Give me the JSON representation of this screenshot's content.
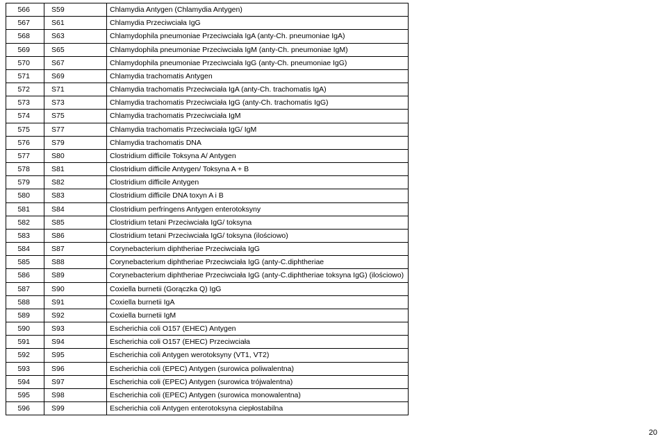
{
  "page_number": "20",
  "table": {
    "rows": [
      {
        "n": "566",
        "code": "S59",
        "desc": "Chlamydia Antygen (Chlamydia Antygen)"
      },
      {
        "n": "567",
        "code": "S61",
        "desc": "Chlamydia Przeciwciała IgG"
      },
      {
        "n": "568",
        "code": "S63",
        "desc": "Chlamydophila pneumoniae Przeciwciała IgA (anty-Ch. pneumoniae IgA)"
      },
      {
        "n": "569",
        "code": "S65",
        "desc": "Chlamydophila pneumoniae Przeciwciała IgM (anty-Ch. pneumoniae IgM)"
      },
      {
        "n": "570",
        "code": "S67",
        "desc": "Chlamydophila pneumoniae Przeciwciała IgG (anty-Ch. pneumoniae IgG)"
      },
      {
        "n": "571",
        "code": "S69",
        "desc": "Chlamydia trachomatis Antygen"
      },
      {
        "n": "572",
        "code": "S71",
        "desc": "Chlamydia trachomatis Przeciwciała IgA (anty-Ch. trachomatis IgA)"
      },
      {
        "n": "573",
        "code": "S73",
        "desc": "Chlamydia trachomatis Przeciwciała IgG (anty-Ch. trachomatis IgG)"
      },
      {
        "n": "574",
        "code": "S75",
        "desc": "Chlamydia trachomatis Przeciwciała IgM"
      },
      {
        "n": "575",
        "code": "S77",
        "desc": "Chlamydia trachomatis Przeciwciała IgG/ IgM"
      },
      {
        "n": "576",
        "code": "S79",
        "desc": "Chlamydia trachomatis DNA"
      },
      {
        "n": "577",
        "code": "S80",
        "desc": "Clostridium difficile Toksyna A/ Antygen"
      },
      {
        "n": "578",
        "code": "S81",
        "desc": "Clostridium difficile Antygen/ Toksyna A + B"
      },
      {
        "n": "579",
        "code": "S82",
        "desc": "Clostridium difficile Antygen"
      },
      {
        "n": "580",
        "code": "S83",
        "desc": "Clostridium difficile DNA toxyn A i B"
      },
      {
        "n": "581",
        "code": "S84",
        "desc": "Clostridium perfringens Antygen enterotoksyny"
      },
      {
        "n": "582",
        "code": "S85",
        "desc": "Clostridium tetani Przeciwciała IgG/ toksyna"
      },
      {
        "n": "583",
        "code": "S86",
        "desc": "Clostridium tetani Przeciwciała IgG/ toksyna (ilościowo)"
      },
      {
        "n": "584",
        "code": "S87",
        "desc": "Corynebacterium diphtheriae Przeciwciała IgG"
      },
      {
        "n": "585",
        "code": "S88",
        "desc": "Corynebacterium diphtheriae Przeciwciała IgG (anty-C.diphtheriae"
      },
      {
        "n": "586",
        "code": "S89",
        "desc": "Corynebacterium diphtheriae Przeciwciała IgG (anty-C.diphtheriae toksyna IgG) (ilościowo)"
      },
      {
        "n": "587",
        "code": "S90",
        "desc": "Coxiella burnetii (Gorączka Q) IgG"
      },
      {
        "n": "588",
        "code": "S91",
        "desc": "Coxiella burnetii IgA"
      },
      {
        "n": "589",
        "code": "S92",
        "desc": "Coxiella burnetii IgM"
      },
      {
        "n": "590",
        "code": "S93",
        "desc": "Escherichia coli O157 (EHEC) Antygen"
      },
      {
        "n": "591",
        "code": "S94",
        "desc": "Escherichia coli O157 (EHEC) Przeciwciała"
      },
      {
        "n": "592",
        "code": "S95",
        "desc": "Escherichia coli Antygen werotoksyny (VT1, VT2)"
      },
      {
        "n": "593",
        "code": "S96",
        "desc": "Escherichia coli (EPEC) Antygen (surowica poliwalentna)"
      },
      {
        "n": "594",
        "code": "S97",
        "desc": "Escherichia coli (EPEC) Antygen (surowica trójwalentna)"
      },
      {
        "n": "595",
        "code": "S98",
        "desc": "Escherichia coli (EPEC) Antygen (surowica monowalentna)"
      },
      {
        "n": "596",
        "code": "S99",
        "desc": "Escherichia coli Antygen enterotoksyna ciepłostabilna"
      }
    ]
  }
}
